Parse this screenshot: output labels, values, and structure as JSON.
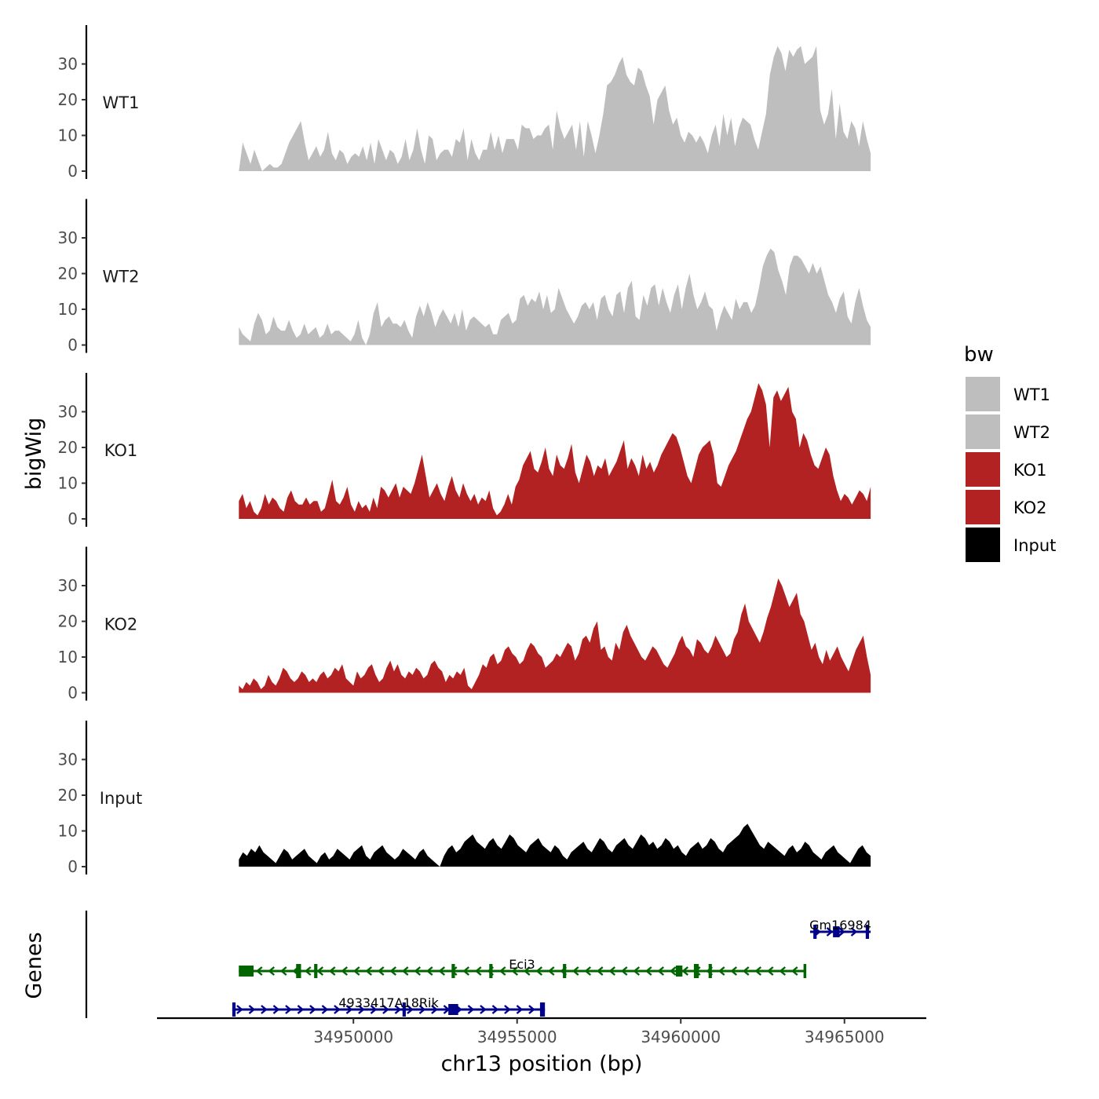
{
  "chart_data": {
    "type": "area",
    "x_range": [
      34946500,
      34965800
    ],
    "xlim": [
      34944000,
      34967500
    ],
    "xlabel": "chr13 position (bp)",
    "x_ticks": [
      34950000,
      34955000,
      34960000,
      34965000
    ],
    "x_tick_labels": [
      "34950000",
      "34955000",
      "34960000",
      "34965000"
    ],
    "ylabel": "bigWig",
    "ylim": [
      0,
      40
    ],
    "y_ticks": [
      0,
      10,
      20,
      30
    ],
    "y_tick_labels": [
      "0",
      "10",
      "20",
      "30"
    ],
    "tracks": [
      {
        "name": "WT1",
        "color": "#bebebe",
        "values": [
          0,
          8,
          5,
          2,
          6,
          3,
          0,
          1,
          2,
          1,
          1,
          2,
          5,
          8,
          10,
          12,
          14,
          8,
          3,
          5,
          7,
          4,
          6,
          11,
          5,
          3,
          6,
          5,
          2,
          4,
          5,
          4,
          7,
          3,
          8,
          2,
          9,
          6,
          3,
          6,
          5,
          2,
          4,
          9,
          3,
          6,
          12,
          6,
          2,
          10,
          9,
          3,
          5,
          6,
          6,
          4,
          9,
          8,
          12,
          3,
          9,
          5,
          3,
          6,
          6,
          11,
          6,
          10,
          5,
          9,
          9,
          9,
          6,
          13,
          12,
          12,
          9,
          10,
          10,
          12,
          13,
          6,
          17,
          12,
          9,
          11,
          13,
          6,
          14,
          4,
          14,
          10,
          5,
          10,
          16,
          24,
          25,
          27,
          30,
          32,
          27,
          25,
          24,
          29,
          28,
          24,
          21,
          13,
          20,
          22,
          24,
          17,
          13,
          15,
          10,
          8,
          11,
          10,
          8,
          10,
          8,
          5,
          10,
          13,
          7,
          16,
          10,
          15,
          7,
          12,
          15,
          14,
          13,
          9,
          6,
          11,
          16,
          27,
          32,
          35,
          33,
          28,
          34,
          32,
          34,
          35,
          30,
          31,
          32,
          35,
          17,
          13,
          16,
          23,
          9,
          19,
          11,
          9,
          14,
          12,
          7,
          14,
          9,
          5
        ]
      },
      {
        "name": "WT2",
        "color": "#bebebe",
        "values": [
          5,
          3,
          2,
          1,
          6,
          9,
          7,
          3,
          4,
          8,
          5,
          4,
          4,
          7,
          4,
          2,
          3,
          6,
          3,
          4,
          5,
          2,
          3,
          6,
          3,
          4,
          4,
          3,
          2,
          1,
          3,
          7,
          2,
          0,
          3,
          9,
          12,
          5,
          7,
          8,
          6,
          6,
          5,
          7,
          4,
          2,
          8,
          11,
          8,
          12,
          9,
          5,
          8,
          10,
          8,
          6,
          9,
          5,
          10,
          4,
          7,
          8,
          7,
          6,
          5,
          6,
          3,
          3,
          7,
          8,
          9,
          6,
          7,
          13,
          14,
          11,
          13,
          12,
          15,
          10,
          14,
          9,
          10,
          16,
          13,
          10,
          8,
          6,
          8,
          11,
          12,
          10,
          12,
          7,
          13,
          14,
          10,
          8,
          14,
          15,
          9,
          16,
          18,
          8,
          7,
          14,
          11,
          16,
          17,
          11,
          16,
          12,
          9,
          14,
          17,
          10,
          16,
          20,
          14,
          10,
          12,
          15,
          11,
          10,
          4,
          8,
          11,
          9,
          7,
          13,
          10,
          12,
          12,
          9,
          11,
          16,
          22,
          25,
          27,
          26,
          21,
          18,
          14,
          22,
          25,
          25,
          24,
          22,
          20,
          23,
          20,
          22,
          18,
          14,
          12,
          9,
          13,
          15,
          8,
          6,
          12,
          16,
          11,
          7,
          5
        ]
      },
      {
        "name": "KO1",
        "color": "#b22222",
        "values": [
          5,
          7,
          3,
          5,
          2,
          1,
          3,
          7,
          4,
          6,
          5,
          3,
          2,
          6,
          8,
          5,
          4,
          4,
          6,
          4,
          5,
          5,
          2,
          3,
          7,
          11,
          5,
          4,
          6,
          9,
          4,
          2,
          5,
          3,
          4,
          2,
          6,
          3,
          9,
          8,
          6,
          8,
          10,
          6,
          9,
          8,
          7,
          10,
          14,
          18,
          12,
          6,
          8,
          10,
          7,
          5,
          9,
          12,
          8,
          6,
          10,
          7,
          5,
          7,
          4,
          6,
          5,
          8,
          3,
          1,
          2,
          4,
          7,
          4,
          9,
          11,
          15,
          17,
          19,
          14,
          13,
          16,
          20,
          14,
          12,
          18,
          15,
          14,
          17,
          21,
          13,
          10,
          14,
          18,
          16,
          12,
          15,
          14,
          17,
          12,
          14,
          16,
          19,
          22,
          14,
          17,
          15,
          12,
          18,
          14,
          16,
          13,
          15,
          18,
          20,
          22,
          24,
          23,
          20,
          16,
          12,
          10,
          14,
          18,
          20,
          21,
          22,
          18,
          10,
          9,
          12,
          15,
          17,
          19,
          22,
          25,
          28,
          30,
          34,
          38,
          36,
          32,
          20,
          34,
          36,
          33,
          35,
          37,
          30,
          28,
          20,
          24,
          22,
          18,
          15,
          14,
          17,
          20,
          18,
          12,
          8,
          5,
          7,
          6,
          4,
          6,
          8,
          7,
          5,
          9
        ]
      },
      {
        "name": "KO2",
        "color": "#b22222",
        "values": [
          2,
          1,
          3,
          2,
          4,
          3,
          1,
          2,
          5,
          3,
          2,
          4,
          7,
          6,
          4,
          3,
          4,
          6,
          5,
          3,
          4,
          3,
          5,
          6,
          4,
          5,
          7,
          6,
          8,
          4,
          3,
          2,
          6,
          4,
          5,
          7,
          8,
          5,
          3,
          4,
          7,
          9,
          6,
          8,
          5,
          4,
          6,
          5,
          7,
          6,
          4,
          5,
          8,
          9,
          7,
          6,
          3,
          5,
          4,
          6,
          5,
          7,
          2,
          1,
          3,
          5,
          8,
          7,
          10,
          11,
          8,
          9,
          12,
          13,
          11,
          10,
          8,
          9,
          12,
          14,
          13,
          11,
          10,
          7,
          8,
          9,
          11,
          10,
          12,
          14,
          13,
          9,
          11,
          15,
          16,
          14,
          18,
          20,
          12,
          13,
          10,
          9,
          14,
          12,
          17,
          19,
          16,
          14,
          12,
          10,
          9,
          11,
          13,
          12,
          10,
          8,
          7,
          9,
          11,
          14,
          16,
          13,
          12,
          10,
          15,
          14,
          12,
          11,
          13,
          16,
          14,
          12,
          10,
          11,
          15,
          17,
          22,
          25,
          20,
          18,
          16,
          14,
          17,
          21,
          24,
          28,
          32,
          30,
          27,
          24,
          26,
          28,
          22,
          20,
          16,
          12,
          14,
          10,
          8,
          12,
          9,
          11,
          13,
          10,
          8,
          6,
          9,
          12,
          14,
          16,
          10,
          5
        ]
      },
      {
        "name": "Input",
        "color": "#000000",
        "values": [
          2,
          4,
          3,
          5,
          4,
          6,
          4,
          3,
          2,
          1,
          3,
          5,
          4,
          2,
          3,
          4,
          5,
          3,
          2,
          1,
          3,
          4,
          2,
          3,
          5,
          4,
          3,
          2,
          4,
          5,
          6,
          3,
          2,
          4,
          5,
          6,
          4,
          3,
          2,
          3,
          5,
          4,
          3,
          2,
          4,
          5,
          3,
          2,
          1,
          0,
          3,
          5,
          6,
          4,
          5,
          7,
          8,
          9,
          7,
          6,
          5,
          7,
          8,
          6,
          5,
          7,
          9,
          8,
          6,
          5,
          4,
          6,
          7,
          8,
          6,
          5,
          4,
          6,
          5,
          3,
          2,
          4,
          5,
          6,
          7,
          5,
          4,
          6,
          8,
          7,
          5,
          4,
          6,
          7,
          8,
          6,
          5,
          7,
          9,
          8,
          6,
          7,
          5,
          6,
          8,
          7,
          5,
          6,
          4,
          3,
          5,
          6,
          7,
          5,
          6,
          8,
          7,
          5,
          4,
          6,
          7,
          8,
          9,
          11,
          12,
          10,
          8,
          6,
          5,
          7,
          6,
          5,
          4,
          3,
          5,
          6,
          4,
          5,
          7,
          6,
          4,
          3,
          2,
          4,
          5,
          6,
          4,
          3,
          2,
          1,
          3,
          5,
          6,
          4,
          3
        ]
      }
    ],
    "legend": {
      "title": "bw",
      "position": "right",
      "items": [
        {
          "label": "WT1",
          "color": "#bebebe"
        },
        {
          "label": "WT2",
          "color": "#bebebe"
        },
        {
          "label": "KO1",
          "color": "#b22222"
        },
        {
          "label": "KO2",
          "color": "#b22222"
        },
        {
          "label": "Input",
          "color": "#000000"
        }
      ]
    },
    "genes_track_label": "Genes",
    "genes": [
      {
        "name": "Gm16984",
        "strand": "+",
        "color": "#00008b",
        "row": 0,
        "start": 34963950,
        "end": 34965800,
        "exons": [
          [
            34964050,
            34964150
          ],
          [
            34964650,
            34964850
          ],
          [
            34965650,
            34965750
          ]
        ]
      },
      {
        "name": "Eci3",
        "strand": "-",
        "color": "#006400",
        "row": 1,
        "start": 34946500,
        "end": 34963800,
        "exons": [
          [
            34946500,
            34946950
          ],
          [
            34948250,
            34948400
          ],
          [
            34948800,
            34948900
          ],
          [
            34953000,
            34953100
          ],
          [
            34954150,
            34954250
          ],
          [
            34956400,
            34956500
          ],
          [
            34959850,
            34960050
          ],
          [
            34960400,
            34960550
          ],
          [
            34960850,
            34960950
          ],
          [
            34963750,
            34963800
          ]
        ]
      },
      {
        "name": "4933417A18Rik",
        "strand": "+",
        "color": "#00008b",
        "row": 2,
        "start": 34946300,
        "end": 34955850,
        "exons": [
          [
            34946300,
            34946400
          ],
          [
            34951500,
            34951600
          ],
          [
            34952900,
            34953200
          ],
          [
            34955700,
            34955850
          ]
        ]
      }
    ]
  }
}
